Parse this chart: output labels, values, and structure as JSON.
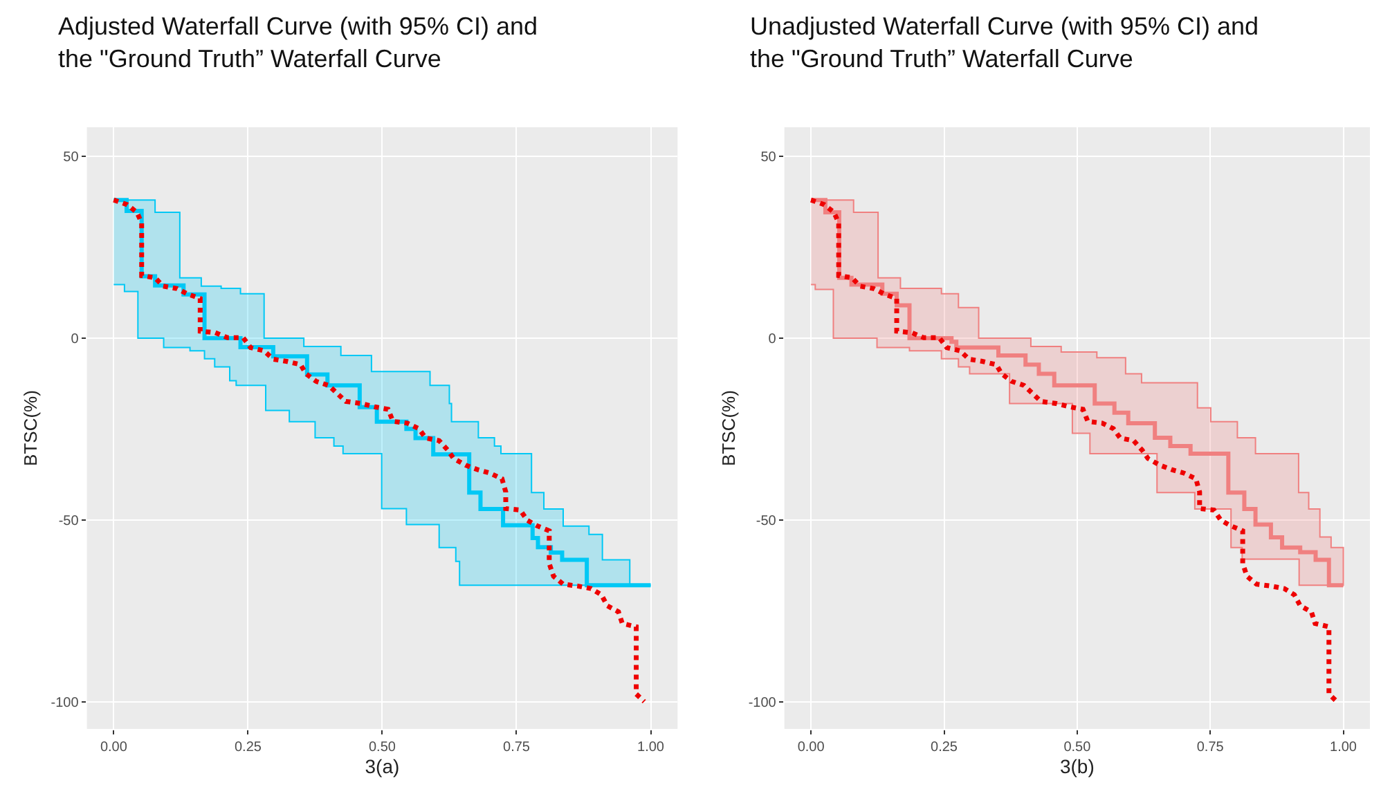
{
  "chart_data": [
    {
      "type": "step",
      "title": "Adjusted Waterfall Curve (with 95% CI) and\nthe \"Ground Truth” Waterfall Curve",
      "xlabel": "3(a)",
      "ylabel": "BTSC(%)",
      "xlim": [
        -0.05,
        1.05
      ],
      "xticks": [
        {
          "value": 0,
          "label": "0.00"
        },
        {
          "value": 0.25,
          "label": "0.25"
        },
        {
          "value": 0.5,
          "label": "0.50"
        },
        {
          "value": 0.75,
          "label": "0.75"
        },
        {
          "value": 1,
          "label": "1.00"
        }
      ],
      "ylim": [
        -107.5,
        58
      ],
      "yticks": [
        -100,
        -50,
        0,
        50
      ],
      "grid": true,
      "series": [
        {
          "type": "step",
          "color": "#00c8f5",
          "x": [
            0,
            0.02,
            0.024,
            0.045,
            0.052,
            0.077,
            0.093,
            0.123,
            0.13,
            0.142,
            0.163,
            0.169,
            0.188,
            0.2,
            0.216,
            0.228,
            0.236,
            0.28,
            0.283,
            0.297,
            0.327,
            0.354,
            0.36,
            0.375,
            0.398,
            0.41,
            0.423,
            0.427,
            0.458,
            0.48,
            0.49,
            0.499,
            0.545,
            0.562,
            0.589,
            0.595,
            0.606,
            0.625,
            0.629,
            0.637,
            0.644,
            0.662,
            0.679,
            0.683,
            0.709,
            0.721,
            0.725,
            0.778,
            0.78,
            0.79,
            0.801,
            0.814,
            0.835,
            0.837,
            0.881,
            0.885,
            0.91,
            0.961,
            1.0
          ],
          "values": [
            38,
            38,
            35,
            35,
            17,
            14.5,
            14.5,
            14.5,
            12,
            12,
            12,
            0,
            0,
            0,
            0,
            0,
            -2.5,
            -2.5,
            -2.5,
            -5,
            -5,
            -5,
            -10,
            -10,
            -13,
            -13,
            -13,
            -13,
            -19,
            -19,
            -23,
            -23,
            -25,
            -27.5,
            -27.5,
            -32,
            -32,
            -32,
            -32,
            -32,
            -32,
            -42.5,
            -42.5,
            -47,
            -47,
            -47,
            -51.5,
            -51.5,
            -55,
            -57.5,
            -57.5,
            -59,
            -61,
            -61,
            -68,
            -68,
            -68,
            -68,
            -68
          ],
          "upper": [
            38,
            38,
            38,
            38,
            38,
            34.6,
            34.6,
            16.6,
            16.6,
            16.6,
            14.3,
            14.3,
            14.3,
            13.7,
            13.7,
            13.7,
            12.2,
            0,
            0,
            0,
            0,
            -2.3,
            -2.3,
            -2.3,
            -2.3,
            -2.3,
            -4.8,
            -4.8,
            -4.8,
            -9.2,
            -9.2,
            -9.2,
            -9.2,
            -9.2,
            -13,
            -13,
            -13,
            -18,
            -23,
            -23,
            -23,
            -23,
            -27.4,
            -27.4,
            -29.7,
            -31.8,
            -31.8,
            -42.5,
            -42.5,
            -42.5,
            -47,
            -47,
            -47,
            -51.7,
            -51.7,
            -54,
            -61,
            -68,
            -68
          ],
          "lower": [
            14.7,
            12.8,
            12.8,
            0,
            0,
            0,
            -2.6,
            -2.6,
            -2.6,
            -3.5,
            -3.5,
            -5.7,
            -7.9,
            -7.9,
            -11.7,
            -13,
            -13,
            -13,
            -19.9,
            -19.9,
            -23,
            -23,
            -23,
            -27.4,
            -27.4,
            -29.7,
            -29.7,
            -31.8,
            -31.8,
            -31.8,
            -31.8,
            -46.9,
            -51.3,
            -51.3,
            -51.3,
            -51.3,
            -57.6,
            -57.6,
            -57.6,
            -61.4,
            -68,
            -68,
            -68,
            -68,
            -68,
            -68,
            -68,
            -68,
            -68,
            -68,
            -68,
            -68,
            -68,
            -68,
            -68,
            -68,
            -68,
            -68,
            -68
          ]
        },
        {
          "type": "line",
          "line_style": "dotted",
          "color": "#ee0000",
          "x": [
            0,
            0.025,
            0.043,
            0.052,
            0.052,
            0.077,
            0.092,
            0.118,
            0.138,
            0.161,
            0.161,
            0.189,
            0.212,
            0.241,
            0.255,
            0.28,
            0.297,
            0.322,
            0.348,
            0.358,
            0.377,
            0.4,
            0.432,
            0.461,
            0.486,
            0.511,
            0.52,
            0.547,
            0.568,
            0.581,
            0.606,
            0.622,
            0.633,
            0.656,
            0.678,
            0.7,
            0.723,
            0.73,
            0.73,
            0.757,
            0.77,
            0.788,
            0.811,
            0.811,
            0.819,
            0.837,
            0.864,
            0.889,
            0.908,
            0.919,
            0.94,
            0.947,
            0.973,
            0.973,
            0.988
          ],
          "values": [
            38,
            36.7,
            34.6,
            31.7,
            17.2,
            16.6,
            14.3,
            13.6,
            12.1,
            10.9,
            1.9,
            1.5,
            0.1,
            0.1,
            -2.6,
            -3.5,
            -5.8,
            -6.4,
            -7.3,
            -9.8,
            -11.9,
            -13,
            -17.4,
            -18,
            -18.9,
            -19.6,
            -22.9,
            -23.4,
            -24.9,
            -27.5,
            -28.2,
            -30.8,
            -33.1,
            -35,
            -36.2,
            -37.1,
            -38.7,
            -42.3,
            -46.9,
            -47.3,
            -50.1,
            -51.6,
            -53,
            -62,
            -65.5,
            -67.7,
            -68.2,
            -68.9,
            -70.6,
            -73.6,
            -75.3,
            -78.5,
            -79.4,
            -97.9,
            -100
          ]
        }
      ]
    },
    {
      "type": "step",
      "title": "Unadjusted Waterfall Curve (with 95% CI) and\nthe \"Ground Truth” Waterfall Curve",
      "xlabel": "3(b)",
      "ylabel": "BTSC(%)",
      "xlim": [
        -0.05,
        1.05
      ],
      "xticks": [
        {
          "value": 0,
          "label": "0.00"
        },
        {
          "value": 0.25,
          "label": "0.25"
        },
        {
          "value": 0.5,
          "label": "0.50"
        },
        {
          "value": 0.75,
          "label": "0.75"
        },
        {
          "value": 1,
          "label": "1.00"
        }
      ],
      "ylim": [
        -107.5,
        58
      ],
      "yticks": [
        -100,
        -50,
        0,
        50
      ],
      "grid": true,
      "series": [
        {
          "type": "step",
          "color": "#f08080",
          "x": [
            0,
            0.008,
            0.027,
            0.042,
            0.053,
            0.076,
            0.08,
            0.124,
            0.126,
            0.134,
            0.161,
            0.168,
            0.185,
            0.245,
            0.264,
            0.273,
            0.277,
            0.298,
            0.315,
            0.352,
            0.373,
            0.403,
            0.413,
            0.428,
            0.457,
            0.47,
            0.491,
            0.524,
            0.533,
            0.537,
            0.57,
            0.591,
            0.596,
            0.621,
            0.646,
            0.65,
            0.675,
            0.713,
            0.721,
            0.726,
            0.751,
            0.784,
            0.789,
            0.801,
            0.81,
            0.814,
            0.835,
            0.864,
            0.885,
            0.916,
            0.917,
            0.919,
            0.935,
            0.948,
            0.956,
            0.973,
            0.977,
            1.0
          ],
          "values": [
            38,
            38,
            34.6,
            34.6,
            16.6,
            14.7,
            14.7,
            14.7,
            14.7,
            12.2,
            9,
            9,
            0,
            0,
            -1,
            -2.6,
            -2.6,
            -2.6,
            -2.6,
            -4.8,
            -4.8,
            -7.3,
            -7.3,
            -9.8,
            -13,
            -13,
            -13,
            -13,
            -18,
            -18,
            -20.5,
            -20.5,
            -23.4,
            -23.4,
            -27.4,
            -27.4,
            -29.7,
            -31.8,
            -31.8,
            -31.8,
            -31.8,
            -42.5,
            -42.5,
            -42.5,
            -42.5,
            -47,
            -51.3,
            -54.8,
            -57.6,
            -57.6,
            -57.6,
            -58.9,
            -58.9,
            -61,
            -61,
            -68,
            -68,
            -68
          ],
          "upper": [
            38,
            38,
            38,
            38,
            38,
            38,
            34.6,
            34.6,
            16.6,
            16.6,
            16.6,
            13.7,
            13.7,
            12.2,
            12.2,
            12.2,
            8.4,
            8.4,
            0,
            0,
            0,
            0,
            -2.3,
            -2.3,
            -2.3,
            -3.8,
            -3.8,
            -3.8,
            -3.8,
            -5.4,
            -5.4,
            -9.8,
            -9.8,
            -12.3,
            -12.3,
            -12.3,
            -12.3,
            -12.3,
            -12.3,
            -19.2,
            -23,
            -23,
            -23,
            -27.4,
            -27.4,
            -27.4,
            -31.8,
            -31.8,
            -31.8,
            -42.5,
            -42.5,
            -42.5,
            -47,
            -47,
            -54.7,
            -54.7,
            -57.6,
            -57.6
          ],
          "lower": [
            14.7,
            13.4,
            13.4,
            0,
            0,
            0,
            0,
            -2.6,
            -2.6,
            -2.6,
            -2.6,
            -2.6,
            -3.5,
            -5.7,
            -5.7,
            -5.7,
            -7.9,
            -9.8,
            -9.8,
            -9.8,
            -18,
            -18,
            -18,
            -18,
            -18,
            -18,
            -26.2,
            -31.8,
            -31.8,
            -31.8,
            -31.8,
            -31.8,
            -31.8,
            -31.8,
            -31.8,
            -42.5,
            -42.5,
            -42.5,
            -47,
            -47,
            -47,
            -47,
            -57.6,
            -57.6,
            -60.8,
            -60.8,
            -60.8,
            -60.8,
            -60.8,
            -60.8,
            -68,
            -68,
            -68,
            -68,
            -68,
            -68,
            -68,
            -68
          ]
        },
        {
          "type": "line",
          "line_style": "dotted",
          "color": "#ee0000",
          "x": [
            0,
            0.025,
            0.043,
            0.052,
            0.052,
            0.077,
            0.092,
            0.118,
            0.138,
            0.161,
            0.161,
            0.189,
            0.212,
            0.241,
            0.255,
            0.28,
            0.297,
            0.322,
            0.348,
            0.358,
            0.377,
            0.4,
            0.432,
            0.461,
            0.486,
            0.511,
            0.52,
            0.547,
            0.568,
            0.581,
            0.606,
            0.622,
            0.633,
            0.656,
            0.678,
            0.7,
            0.723,
            0.73,
            0.73,
            0.757,
            0.77,
            0.788,
            0.811,
            0.811,
            0.819,
            0.837,
            0.864,
            0.889,
            0.908,
            0.919,
            0.94,
            0.947,
            0.973,
            0.973,
            0.988
          ],
          "values": [
            38,
            36.7,
            34.6,
            31.7,
            17.2,
            16.6,
            14.3,
            13.6,
            12.1,
            10.9,
            1.9,
            1.5,
            0.1,
            0.1,
            -2.6,
            -3.5,
            -5.8,
            -6.4,
            -7.3,
            -9.8,
            -11.9,
            -13,
            -17.4,
            -18,
            -18.9,
            -19.6,
            -22.9,
            -23.4,
            -24.9,
            -27.5,
            -28.2,
            -30.8,
            -33.1,
            -35,
            -36.2,
            -37.1,
            -38.7,
            -42.3,
            -46.9,
            -47.3,
            -50.1,
            -51.6,
            -53,
            -62,
            -65.5,
            -67.7,
            -68.2,
            -68.9,
            -70.6,
            -73.6,
            -75.3,
            -78.5,
            -79.4,
            -97.9,
            -100
          ]
        }
      ]
    }
  ]
}
